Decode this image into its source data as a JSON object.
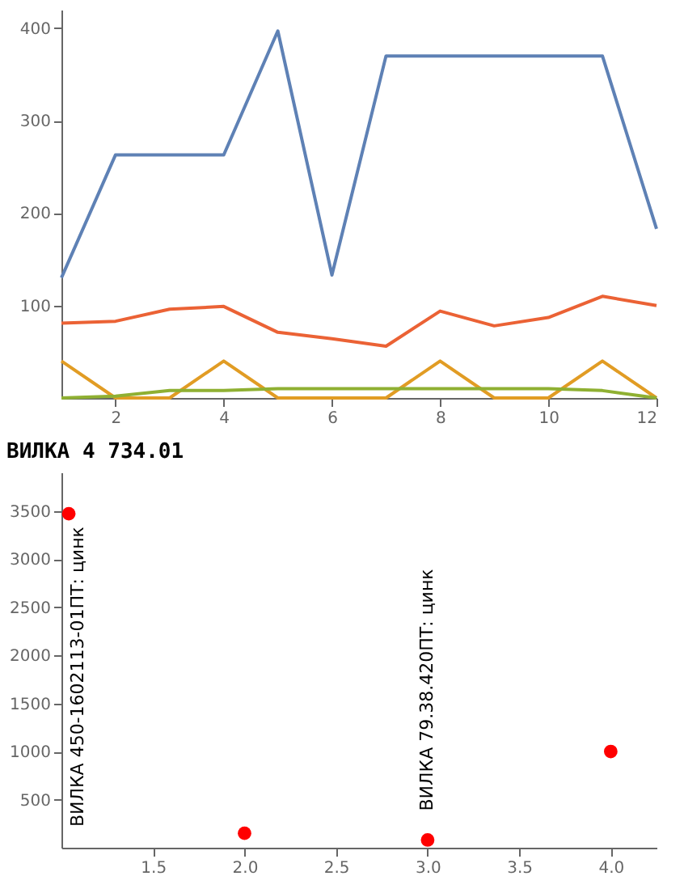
{
  "chart_data": [
    {
      "type": "line",
      "x": [
        1,
        2,
        3,
        4,
        5,
        6,
        7,
        8,
        9,
        10,
        11,
        12
      ],
      "xlim": [
        1,
        12
      ],
      "xticks": [
        2,
        4,
        6,
        8,
        10,
        12
      ],
      "ylim": [
        0,
        420
      ],
      "yticks": [
        100,
        200,
        300,
        400
      ],
      "grid": false,
      "marker": "none",
      "line_style": "solid",
      "series": [
        {
          "color": "#5e81b5",
          "values": [
            130,
            263,
            263,
            263,
            397,
            133,
            370,
            370,
            370,
            370,
            370,
            183
          ]
        },
        {
          "color": "#eb6235",
          "values": [
            81,
            83,
            96,
            99,
            71,
            64,
            56,
            94,
            78,
            87,
            110,
            100
          ]
        },
        {
          "color": "#e19c24",
          "values": [
            40,
            0,
            0,
            40,
            0,
            0,
            0,
            40,
            0,
            0,
            40,
            0
          ]
        },
        {
          "color": "#8fb032",
          "values": [
            0,
            2,
            8,
            8,
            10,
            10,
            10,
            10,
            10,
            10,
            8,
            0
          ]
        }
      ]
    },
    {
      "type": "scatter",
      "title": "ВИЛКА 4 734.01",
      "x": [
        1.04,
        2,
        3,
        4
      ],
      "values": [
        3470,
        150,
        80,
        1000
      ],
      "color": "#ff0000",
      "marker": "circle",
      "xlim": [
        1,
        4.25
      ],
      "xticks": [
        1.5,
        {
          "value": 2,
          "label": "2.0"
        },
        2.5,
        {
          "value": 3,
          "label": "3.0"
        },
        3.5,
        {
          "value": 4,
          "label": "4.0"
        }
      ],
      "ylim": [
        0,
        3900
      ],
      "yticks": [
        500,
        1000,
        1500,
        2000,
        2500,
        3000,
        3500
      ],
      "grid": false,
      "annotations": [
        {
          "text": "ВИЛКА 450-1602113-01ПТ: цинк",
          "x": 1.04,
          "y": 3470
        },
        {
          "text": "ВИЛКА 79.38.420ПТ: цинк",
          "x": 3,
          "y": 80
        }
      ]
    }
  ]
}
